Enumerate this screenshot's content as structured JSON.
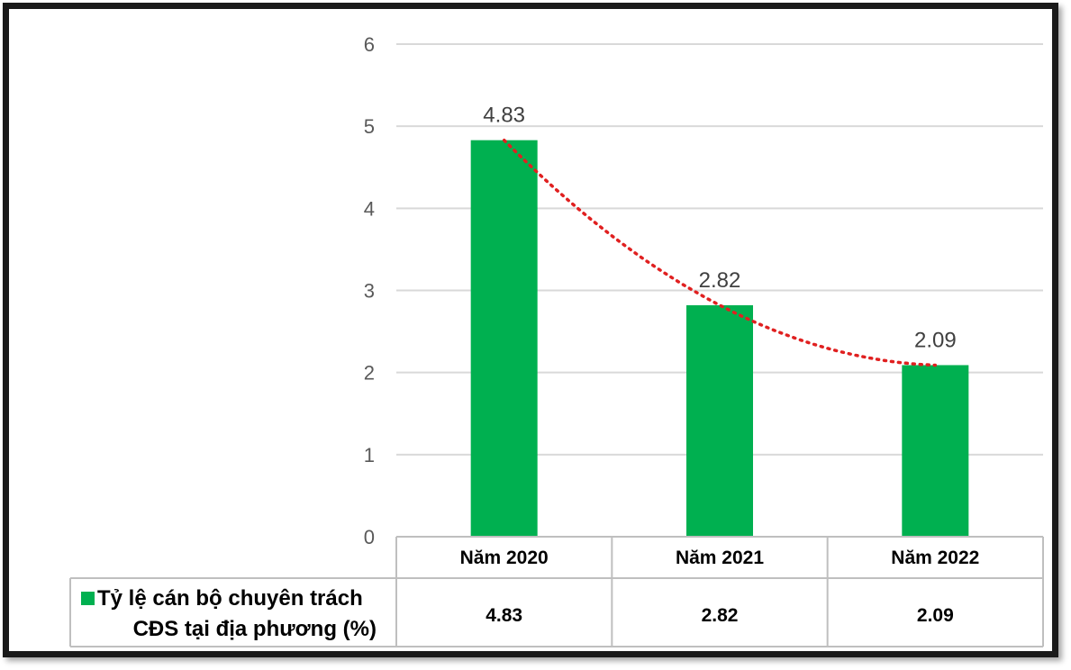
{
  "chart_data": {
    "type": "bar",
    "categories": [
      "Năm 2020",
      "Năm 2021",
      "Năm 2022"
    ],
    "series": [
      {
        "name": "Tỷ lệ cán bộ chuyên trách CĐS tại địa phương (%)",
        "name_lines": [
          "Tỷ lệ cán bộ chuyên trách",
          "CĐS tại địa phương (%)"
        ],
        "values": [
          4.83,
          2.82,
          2.09
        ],
        "data_labels": [
          "4.83",
          "2.82",
          "2.09"
        ],
        "color": "#00B050"
      }
    ],
    "yticks": [
      "0",
      "1",
      "2",
      "3",
      "4",
      "5",
      "6"
    ],
    "ylim": [
      0,
      6
    ],
    "grid": true,
    "trendline": {
      "type": "polynomial",
      "style": "dotted",
      "color": "#E02020"
    },
    "data_table": true,
    "title": "",
    "xlabel": "",
    "ylabel": ""
  }
}
